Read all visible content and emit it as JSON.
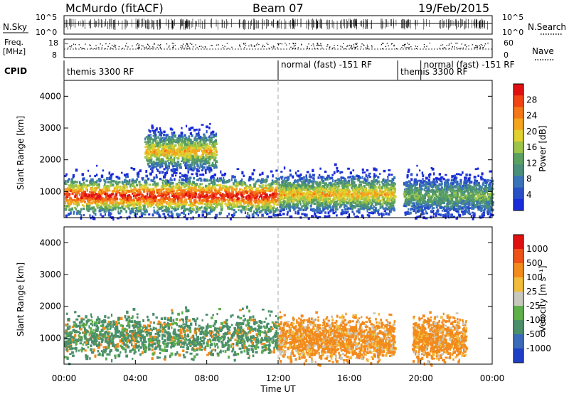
{
  "header": {
    "station": "McMurdo (fitACF)",
    "beam": "Beam 07",
    "date": "19/Feb/2015"
  },
  "side_labels": {
    "nsky": "N.Sky",
    "freq_line1": "Freq.",
    "freq_line2": "[MHz]",
    "cpid": "CPID",
    "nsearch": "N.Search",
    "nave": "Nave"
  },
  "strip_ticks": {
    "nsky_left": [
      "10^5",
      "10^0"
    ],
    "nsky_right": [
      "10^5",
      "10^0"
    ],
    "freq": [
      "18",
      "8"
    ],
    "nave": [
      "60",
      "0"
    ]
  },
  "cpid_segments": [
    {
      "label": "themis 3300 RF",
      "start": 0,
      "end": 12
    },
    {
      "label": "normal (fast) -151 RF",
      "start": 12,
      "end": 18.7
    },
    {
      "label": "themis 3300 RF",
      "start": 18.7,
      "end": 20
    },
    {
      "label": "normal (fast) -151 RF",
      "start": 20,
      "end": 24
    }
  ],
  "chart_data": [
    {
      "type": "heatmap",
      "quantity": "Power",
      "ylabel": "Slant Range [km]",
      "xlabel": "Time UT",
      "xlim": [
        0,
        24
      ],
      "ylim": [
        180,
        4500
      ],
      "x_ticks": [
        "00:00",
        "04:00",
        "08:00",
        "12:00",
        "16:00",
        "20:00",
        "00:00"
      ],
      "y_ticks": [
        1000,
        2000,
        3000,
        4000
      ],
      "colorbar": {
        "label": "Power [dB]",
        "ticks": [
          "4",
          "8",
          "12",
          "16",
          "20",
          "24",
          "28"
        ],
        "colors": [
          "#1a2bd9",
          "#2a50c8",
          "#3a74b8",
          "#4a8f7a",
          "#5aa060",
          "#9cc448",
          "#e0d030",
          "#f4a41e",
          "#f47818",
          "#f04414",
          "#e01010"
        ]
      },
      "echo_bands": [
        {
          "start": 0.0,
          "end": 12.0,
          "range_center": 900,
          "level": "strong"
        },
        {
          "start": 4.5,
          "end": 8.5,
          "range_center": 2300,
          "level": "moderate"
        },
        {
          "start": 12.0,
          "end": 18.5,
          "range_center": 950,
          "level": "moderate"
        },
        {
          "start": 19.0,
          "end": 24.0,
          "range_center": 900,
          "level": "weak"
        }
      ]
    },
    {
      "type": "heatmap",
      "quantity": "Velocity",
      "ylabel": "Slant Range [km]",
      "xlabel": "Time UT",
      "xlim": [
        0,
        24
      ],
      "ylim": [
        180,
        4500
      ],
      "x_ticks": [
        "00:00",
        "04:00",
        "08:00",
        "12:00",
        "16:00",
        "20:00",
        "00:00"
      ],
      "y_ticks": [
        1000,
        2000,
        3000,
        4000
      ],
      "colorbar": {
        "label": "Velocity [m s⁻¹]",
        "ticks": [
          "1000",
          "500",
          "100",
          "25",
          "-25",
          "-100",
          "-500",
          "-1000"
        ],
        "colors": [
          "#1f3ec8",
          "#3a6ab8",
          "#4a8f6a",
          "#5fb04a",
          "#c8c8bc",
          "#f2bc3a",
          "#f28a1c",
          "#ee5218",
          "#e01010"
        ]
      },
      "echo_bands": [
        {
          "start": 0.0,
          "end": 12.0,
          "range_center": 1100,
          "direction": "toward"
        },
        {
          "start": 12.0,
          "end": 18.5,
          "range_center": 1000,
          "direction": "away"
        },
        {
          "start": 19.5,
          "end": 22.5,
          "range_center": 1000,
          "direction": "away"
        }
      ]
    }
  ]
}
